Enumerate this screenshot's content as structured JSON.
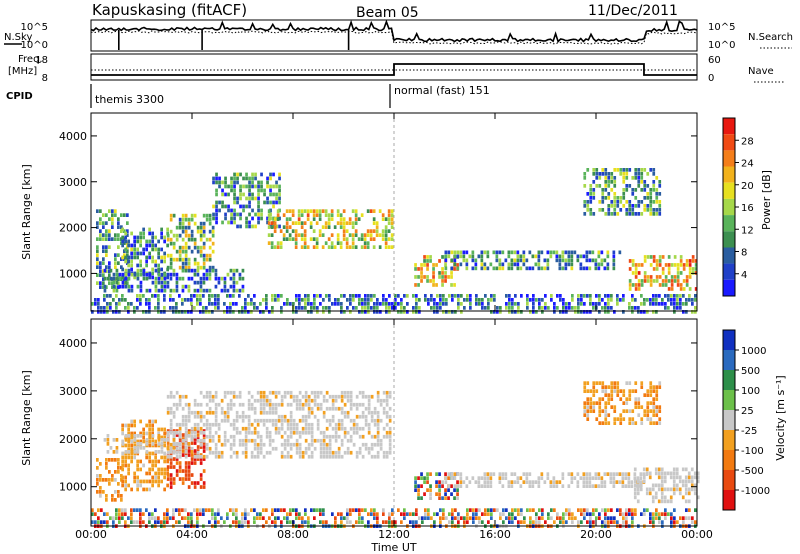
{
  "header": {
    "station": "Kapuskasing (fitACF)",
    "beam": "Beam 05",
    "date": "11/Dec/2011"
  },
  "top_panels": {
    "nsky_label": "N.Sky",
    "nsky_ticks": [
      "10^5",
      "10^0"
    ],
    "nsearch_label": "N.Search",
    "nsearch_ticks": [
      "10^5",
      "10^0"
    ],
    "freq_label_line1": "Freq.",
    "freq_label_line2": "[MHz]",
    "freq_ticks": [
      "18",
      "8"
    ],
    "nave_label": "Nave",
    "nave_ticks": [
      "60",
      "0"
    ],
    "cpid_label": "CPID",
    "cpid_segments": [
      {
        "name": "themis 3300",
        "start_hour": 0,
        "end_hour": 12
      },
      {
        "name": "normal (fast) 151",
        "start_hour": 12,
        "end_hour": 24
      }
    ]
  },
  "chart_data": [
    {
      "type": "heatmap",
      "panel": "power",
      "ylabel": "Slant Range [km]",
      "y_ticks": [
        1000,
        2000,
        3000,
        4000
      ],
      "ylim": [
        180,
        4500
      ],
      "xlim": [
        0,
        24
      ],
      "colorbar": {
        "label": "Power [dB]",
        "range": [
          0,
          32
        ],
        "ticks": [
          "4",
          "8",
          "12",
          "16",
          "20",
          "24",
          "28"
        ],
        "colors": [
          "#1a1aff",
          "#2040c8",
          "#2a5da0",
          "#3c8f50",
          "#59b35a",
          "#a6d84a",
          "#e7e020",
          "#f2b21c",
          "#f47e1a",
          "#f04a14",
          "#e81810"
        ]
      },
      "echo_regions": [
        {
          "t0": 0.2,
          "t1": 1.4,
          "r0": 700,
          "r1": 2400,
          "level": 0.35
        },
        {
          "t0": 1.2,
          "t1": 3.0,
          "r0": 900,
          "r1": 2000,
          "level": 0.3
        },
        {
          "t0": 3.0,
          "t1": 4.8,
          "r0": 1100,
          "r1": 2300,
          "level": 0.45
        },
        {
          "t0": 4.8,
          "t1": 7.5,
          "r0": 2000,
          "r1": 3200,
          "level": 0.3
        },
        {
          "t0": 7.0,
          "t1": 11.9,
          "r0": 1600,
          "r1": 2400,
          "level": 0.55
        },
        {
          "t0": 0.5,
          "t1": 6.0,
          "r0": 650,
          "r1": 1100,
          "level": 0.25
        },
        {
          "t0": 12.8,
          "t1": 14.5,
          "r0": 750,
          "r1": 1400,
          "level": 0.6
        },
        {
          "t0": 14.0,
          "t1": 21.0,
          "r0": 1100,
          "r1": 1500,
          "level": 0.3
        },
        {
          "t0": 19.5,
          "t1": 22.5,
          "r0": 2300,
          "r1": 3300,
          "level": 0.35
        },
        {
          "t0": 21.3,
          "t1": 24.0,
          "r0": 700,
          "r1": 1400,
          "level": 0.65
        },
        {
          "t0": 0.0,
          "t1": 24.0,
          "r0": 200,
          "r1": 550,
          "level": 0.25
        }
      ]
    },
    {
      "type": "heatmap",
      "panel": "velocity",
      "ylabel": "Slant Range [km]",
      "y_ticks": [
        1000,
        2000,
        3000,
        4000
      ],
      "ylim": [
        180,
        4500
      ],
      "xlim": [
        0,
        24
      ],
      "colorbar": {
        "label": "Velocity [m s⁻¹]",
        "ticks": [
          "1000",
          "500",
          "100",
          "25",
          "-25",
          "-100",
          "-500",
          "-1000"
        ],
        "colors": [
          "#1030c0",
          "#2a6abf",
          "#2d8f4a",
          "#6cc04a",
          "#c8c8c8",
          "#f2a020",
          "#f27a10",
          "#e84a10",
          "#e01010"
        ]
      },
      "echo_regions": [
        {
          "t0": 0.2,
          "t1": 1.2,
          "r0": 700,
          "r1": 1600,
          "kind": "neg"
        },
        {
          "t0": 1.2,
          "t1": 3.0,
          "r0": 900,
          "r1": 2400,
          "kind": "neg"
        },
        {
          "t0": 3.0,
          "t1": 4.5,
          "r0": 1000,
          "r1": 2200,
          "kind": "strongneg"
        },
        {
          "t0": 3.0,
          "t1": 11.9,
          "r0": 1600,
          "r1": 3000,
          "kind": "gray"
        },
        {
          "t0": 0.5,
          "t1": 4.0,
          "r0": 1700,
          "r1": 2100,
          "kind": "gray"
        },
        {
          "t0": 12.8,
          "t1": 14.5,
          "r0": 750,
          "r1": 1300,
          "kind": "mixed"
        },
        {
          "t0": 14.0,
          "t1": 22.0,
          "r0": 1000,
          "r1": 1300,
          "kind": "gray"
        },
        {
          "t0": 19.5,
          "t1": 22.5,
          "r0": 2300,
          "r1": 3200,
          "kind": "neg"
        },
        {
          "t0": 21.5,
          "t1": 24.0,
          "r0": 700,
          "r1": 1400,
          "kind": "gray"
        },
        {
          "t0": 0.0,
          "t1": 24.0,
          "r0": 200,
          "r1": 550,
          "kind": "mixed"
        }
      ]
    }
  ],
  "x_axis": {
    "ticks": [
      "00:00",
      "04:00",
      "08:00",
      "12:00",
      "16:00",
      "20:00",
      "00:00"
    ],
    "label": "Time UT"
  }
}
